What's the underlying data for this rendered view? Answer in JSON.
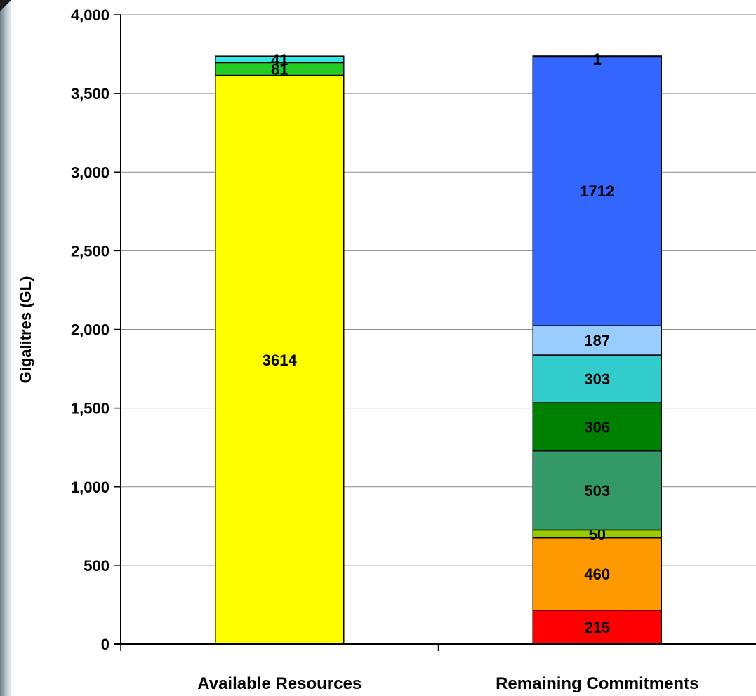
{
  "chart_data": {
    "type": "bar",
    "stacked": true,
    "ylabel": "Gigalitres (GL)",
    "ylim": [
      0,
      4000
    ],
    "yticks": [
      0,
      500,
      1000,
      1500,
      2000,
      2500,
      3000,
      3500,
      4000
    ],
    "ytick_labels": [
      "0",
      "500",
      "1,000",
      "1,500",
      "2,000",
      "2,500",
      "3,000",
      "3,500",
      "4,000"
    ],
    "grid": true,
    "categories": [
      "Available Resources",
      "Remaining Commitments"
    ],
    "stacks": [
      {
        "category": "Available Resources",
        "segments": [
          {
            "value": 3614,
            "label": "3614",
            "color": "#ffff00"
          },
          {
            "value": 81,
            "label": "81",
            "color": "#22cc22"
          },
          {
            "value": 41,
            "label": "41",
            "color": "#33e6e6"
          }
        ]
      },
      {
        "category": "Remaining Commitments",
        "segments": [
          {
            "value": 215,
            "label": "215",
            "color": "#ff0000"
          },
          {
            "value": 460,
            "label": "460",
            "color": "#ff9900"
          },
          {
            "value": 50,
            "label": "50",
            "color": "#99cc00"
          },
          {
            "value": 503,
            "label": "503",
            "color": "#339966"
          },
          {
            "value": 306,
            "label": "306",
            "color": "#008000"
          },
          {
            "value": 303,
            "label": "303",
            "color": "#33cccc"
          },
          {
            "value": 187,
            "label": "187",
            "color": "#99ccff"
          },
          {
            "value": 1712,
            "label": "1712",
            "color": "#3366ff"
          },
          {
            "value": 1,
            "label": "1",
            "color": "#3366ff"
          }
        ]
      }
    ]
  }
}
